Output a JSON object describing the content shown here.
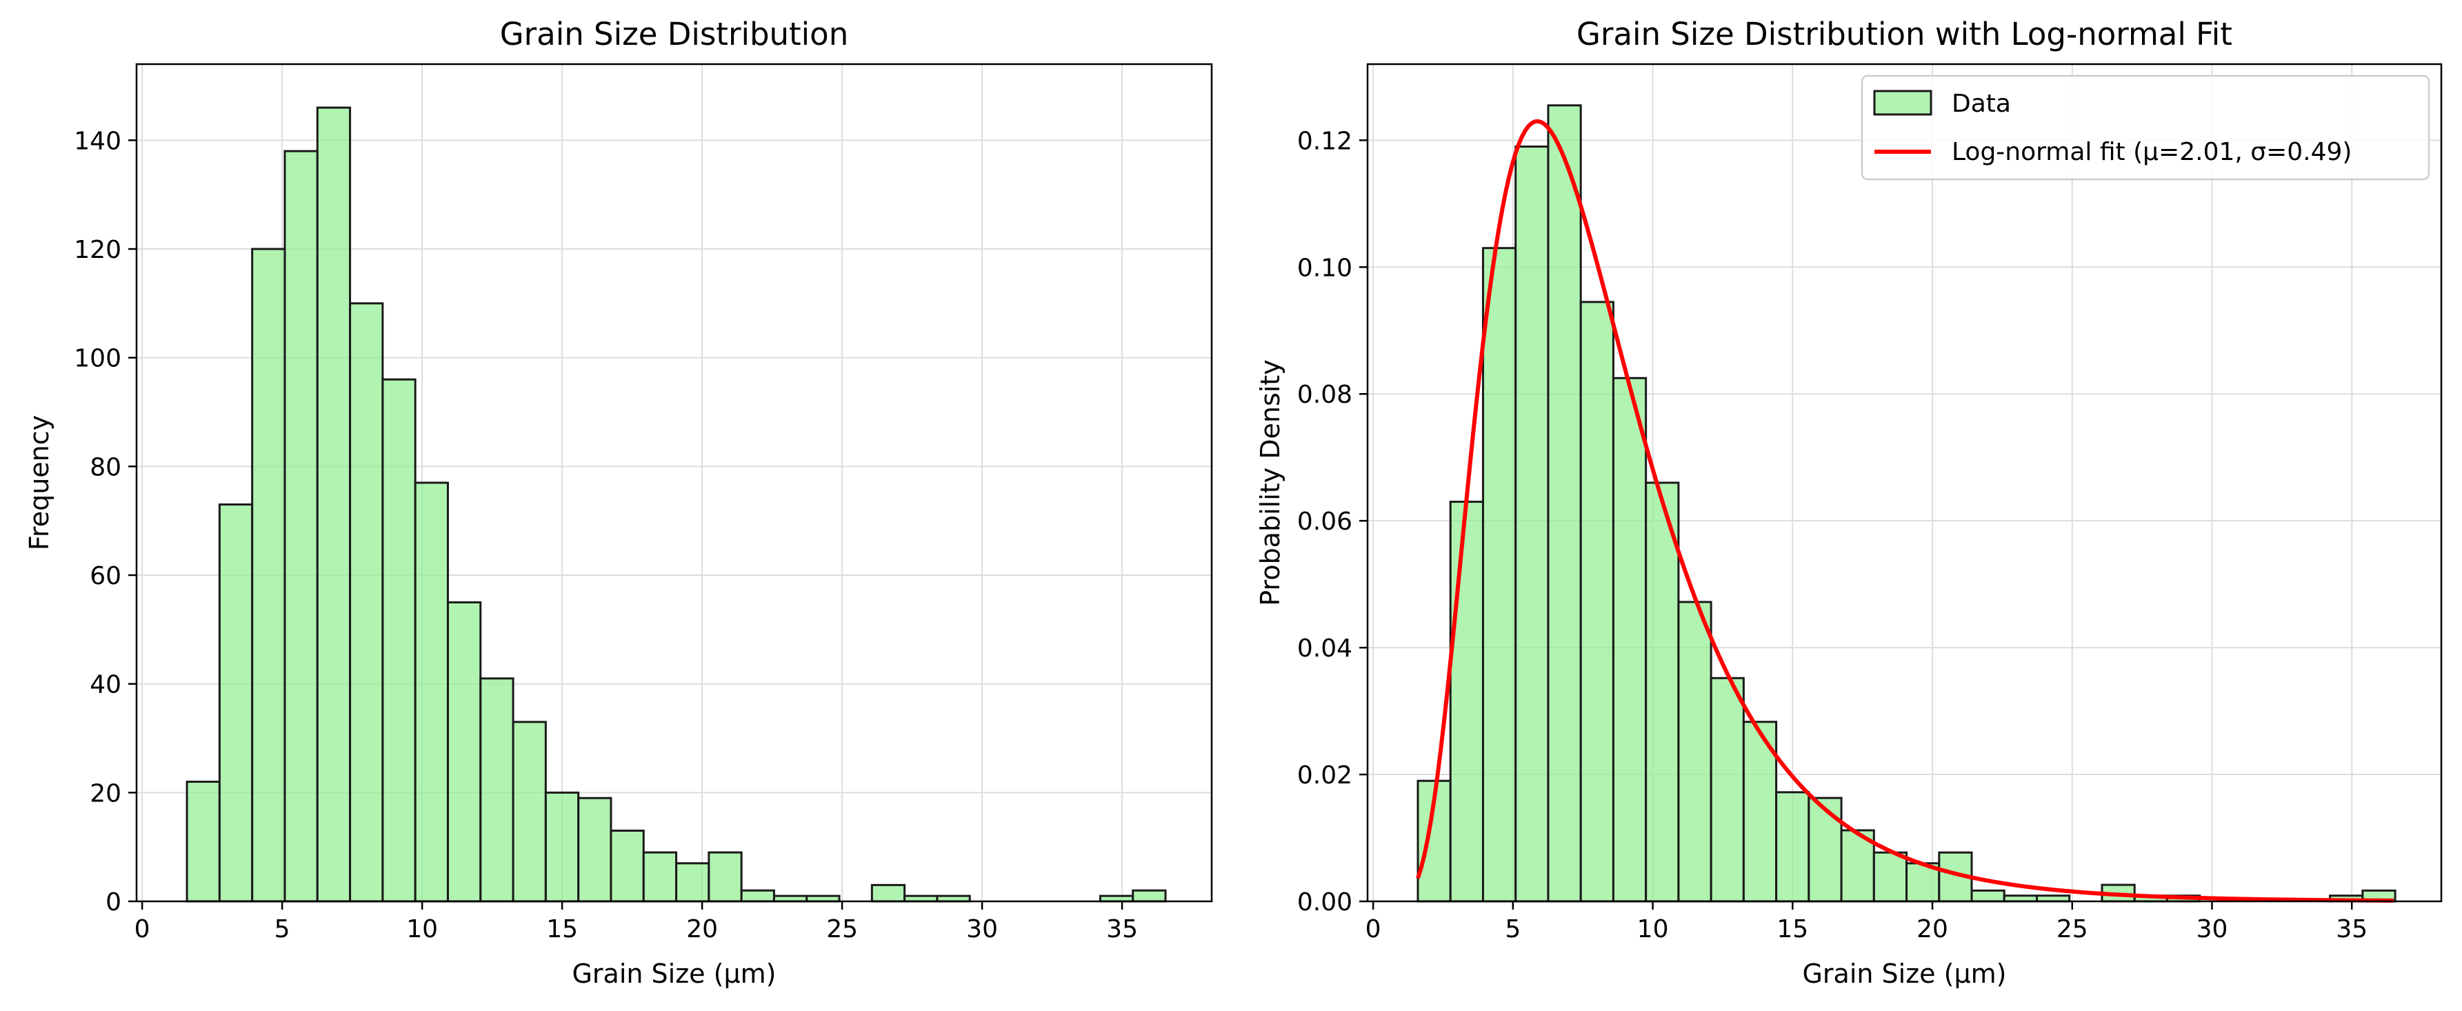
{
  "colors": {
    "bar_fill": "#90ee90",
    "bar_fill_opacity": 0.7,
    "bar_edge": "#1a1a1a",
    "fit_line": "#ff0000",
    "grid": "#dddddd",
    "axis": "#000000"
  },
  "chart_data": [
    {
      "type": "bar",
      "title": "Grain Size Distribution",
      "xlabel": "Grain Size (μm)",
      "ylabel": "Frequency",
      "xlim": [
        -0.2,
        38.2
      ],
      "ylim": [
        0,
        154
      ],
      "xticks": [
        0,
        5,
        10,
        15,
        20,
        25,
        30,
        35
      ],
      "yticks": [
        0,
        20,
        40,
        60,
        80,
        100,
        120,
        140
      ],
      "grid": true,
      "bin_start": 1.6,
      "bin_width": 1.165,
      "values": [
        22,
        73,
        120,
        138,
        146,
        110,
        96,
        77,
        55,
        41,
        33,
        20,
        19,
        13,
        9,
        7,
        9,
        2,
        1,
        1,
        0,
        3,
        1,
        1,
        0,
        0,
        0,
        0,
        1,
        2
      ]
    },
    {
      "type": "bar",
      "title": "Grain Size Distribution with Log-normal Fit",
      "xlabel": "Grain Size (μm)",
      "ylabel": "Probability Density",
      "xlim": [
        -0.2,
        38.2
      ],
      "ylim": [
        0,
        0.132
      ],
      "xticks": [
        0,
        5,
        10,
        15,
        20,
        25,
        30,
        35
      ],
      "yticks": [
        0.0,
        0.02,
        0.04,
        0.06,
        0.08,
        0.1,
        0.12
      ],
      "ytick_labels": [
        "0.00",
        "0.02",
        "0.04",
        "0.06",
        "0.08",
        "0.10",
        "0.12"
      ],
      "grid": true,
      "bin_start": 1.6,
      "bin_width": 1.165,
      "values": [
        0.019,
        0.063,
        0.103,
        0.119,
        0.1255,
        0.0945,
        0.0825,
        0.066,
        0.0472,
        0.0352,
        0.0283,
        0.0172,
        0.0163,
        0.0112,
        0.0077,
        0.006,
        0.0077,
        0.0017,
        0.0009,
        0.0009,
        0.0,
        0.0026,
        0.0009,
        0.0009,
        0.0,
        0.0,
        0.0,
        0.0,
        0.0009,
        0.0017
      ],
      "legend": {
        "placement": "top-right",
        "entries": [
          "Data",
          "Log-normal fit (μ=2.01, σ=0.49)"
        ]
      },
      "fit": {
        "type": "line",
        "name": "Log-normal fit (μ=2.01, σ=0.49)",
        "mu": 2.01,
        "sigma": 0.49,
        "x_range": [
          1.6,
          36.5
        ]
      }
    }
  ]
}
